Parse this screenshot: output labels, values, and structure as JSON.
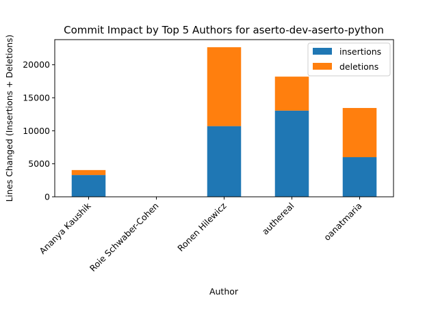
{
  "chart_data": {
    "type": "bar",
    "stacked": true,
    "title": "Commit Impact by Top 5 Authors for aserto-dev-aserto-python",
    "xlabel": "Author",
    "ylabel": "Lines Changed (Insertions + Deletions)",
    "categories": [
      "Ananya Kaushik",
      "Roie Schwaber-Cohen",
      "Ronen Hilewicz",
      "authereal",
      "oanatmaria"
    ],
    "series": [
      {
        "name": "insertions",
        "color": "#1f77b4",
        "values": [
          3300,
          0,
          10700,
          13050,
          6000
        ]
      },
      {
        "name": "deletions",
        "color": "#ff7f0e",
        "values": [
          750,
          0,
          11950,
          5150,
          7450
        ]
      }
    ],
    "ylim": [
      0,
      23800
    ],
    "yticks": [
      0,
      5000,
      10000,
      15000,
      20000
    ],
    "grid": false,
    "legend_position": "top-right"
  }
}
